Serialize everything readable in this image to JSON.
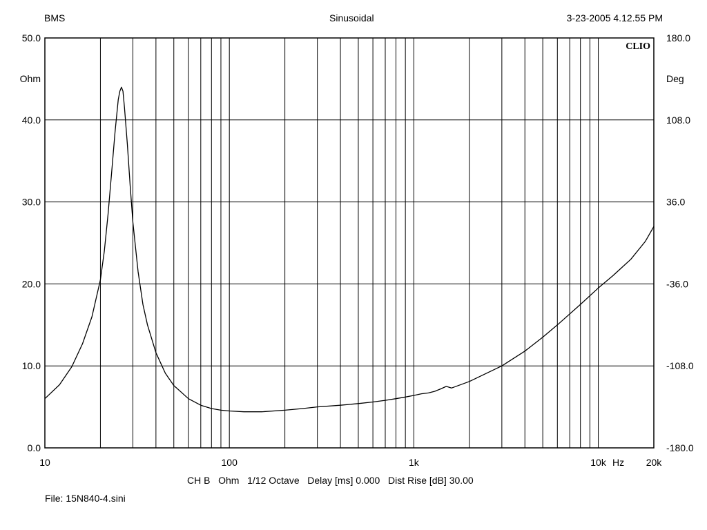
{
  "header": {
    "left": "BMS",
    "center": "Sinusoidal",
    "right": "3-23-2005 4.12.55 PM"
  },
  "brand": "CLIO",
  "footer": {
    "settings": "CH B   Ohm   1/12 Octave   Delay [ms] 0.000   Dist Rise [dB] 30.00",
    "file": "File: 15N840-4.sini"
  },
  "chart_data": {
    "type": "line",
    "xscale": "log",
    "xlim": [
      10,
      20000
    ],
    "ylim": [
      0,
      50
    ],
    "y2lim": [
      -180,
      180
    ],
    "grid": true,
    "yunit": "Ohm",
    "y2unit": "Deg",
    "xunit": "Hz",
    "y_ticks": [
      {
        "value": 0,
        "label": "0.0"
      },
      {
        "value": 10,
        "label": "10.0"
      },
      {
        "value": 20,
        "label": "20.0"
      },
      {
        "value": 30,
        "label": "30.0"
      },
      {
        "value": 40,
        "label": "40.0"
      },
      {
        "value": 50,
        "label": "50.0"
      }
    ],
    "y2_ticks": [
      {
        "value": -180,
        "label": "-180.0"
      },
      {
        "value": -108,
        "label": "-108.0"
      },
      {
        "value": -36,
        "label": "-36.0"
      },
      {
        "value": 36,
        "label": "36.0"
      },
      {
        "value": 108,
        "label": "108.0"
      },
      {
        "value": 180,
        "label": "180.0"
      }
    ],
    "x_ticks": [
      {
        "value": 10,
        "label": "10"
      },
      {
        "value": 100,
        "label": "100"
      },
      {
        "value": 1000,
        "label": "1k"
      },
      {
        "value": 10000,
        "label": "10k"
      },
      {
        "value": 20000,
        "label": "20k"
      }
    ],
    "series": [
      {
        "color": "#000000",
        "x": [
          10,
          12,
          14,
          16,
          18,
          20,
          21,
          22,
          23,
          24,
          25,
          25.5,
          26,
          26.5,
          27,
          28,
          29,
          30,
          32,
          34,
          36,
          40,
          45,
          50,
          60,
          70,
          80,
          90,
          100,
          120,
          150,
          200,
          250,
          300,
          400,
          500,
          600,
          700,
          800,
          900,
          1000,
          1100,
          1200,
          1300,
          1400,
          1500,
          1600,
          2000,
          3000,
          4000,
          5000,
          6000,
          8000,
          10000,
          12000,
          15000,
          18000,
          20000
        ],
        "y": [
          6.0,
          7.7,
          9.9,
          12.7,
          16.0,
          20.5,
          24.0,
          28.5,
          33.5,
          38.5,
          42.5,
          43.5,
          44.0,
          43.5,
          41.5,
          37.0,
          32.0,
          27.5,
          21.5,
          17.5,
          15.0,
          11.6,
          9.1,
          7.6,
          6.0,
          5.2,
          4.8,
          4.6,
          4.5,
          4.4,
          4.4,
          4.6,
          4.8,
          5.0,
          5.2,
          5.4,
          5.6,
          5.8,
          6.0,
          6.2,
          6.4,
          6.6,
          6.7,
          6.9,
          7.2,
          7.5,
          7.3,
          8.1,
          10.0,
          11.8,
          13.5,
          15.0,
          17.5,
          19.5,
          21.0,
          23.0,
          25.2,
          27.0
        ]
      }
    ]
  }
}
